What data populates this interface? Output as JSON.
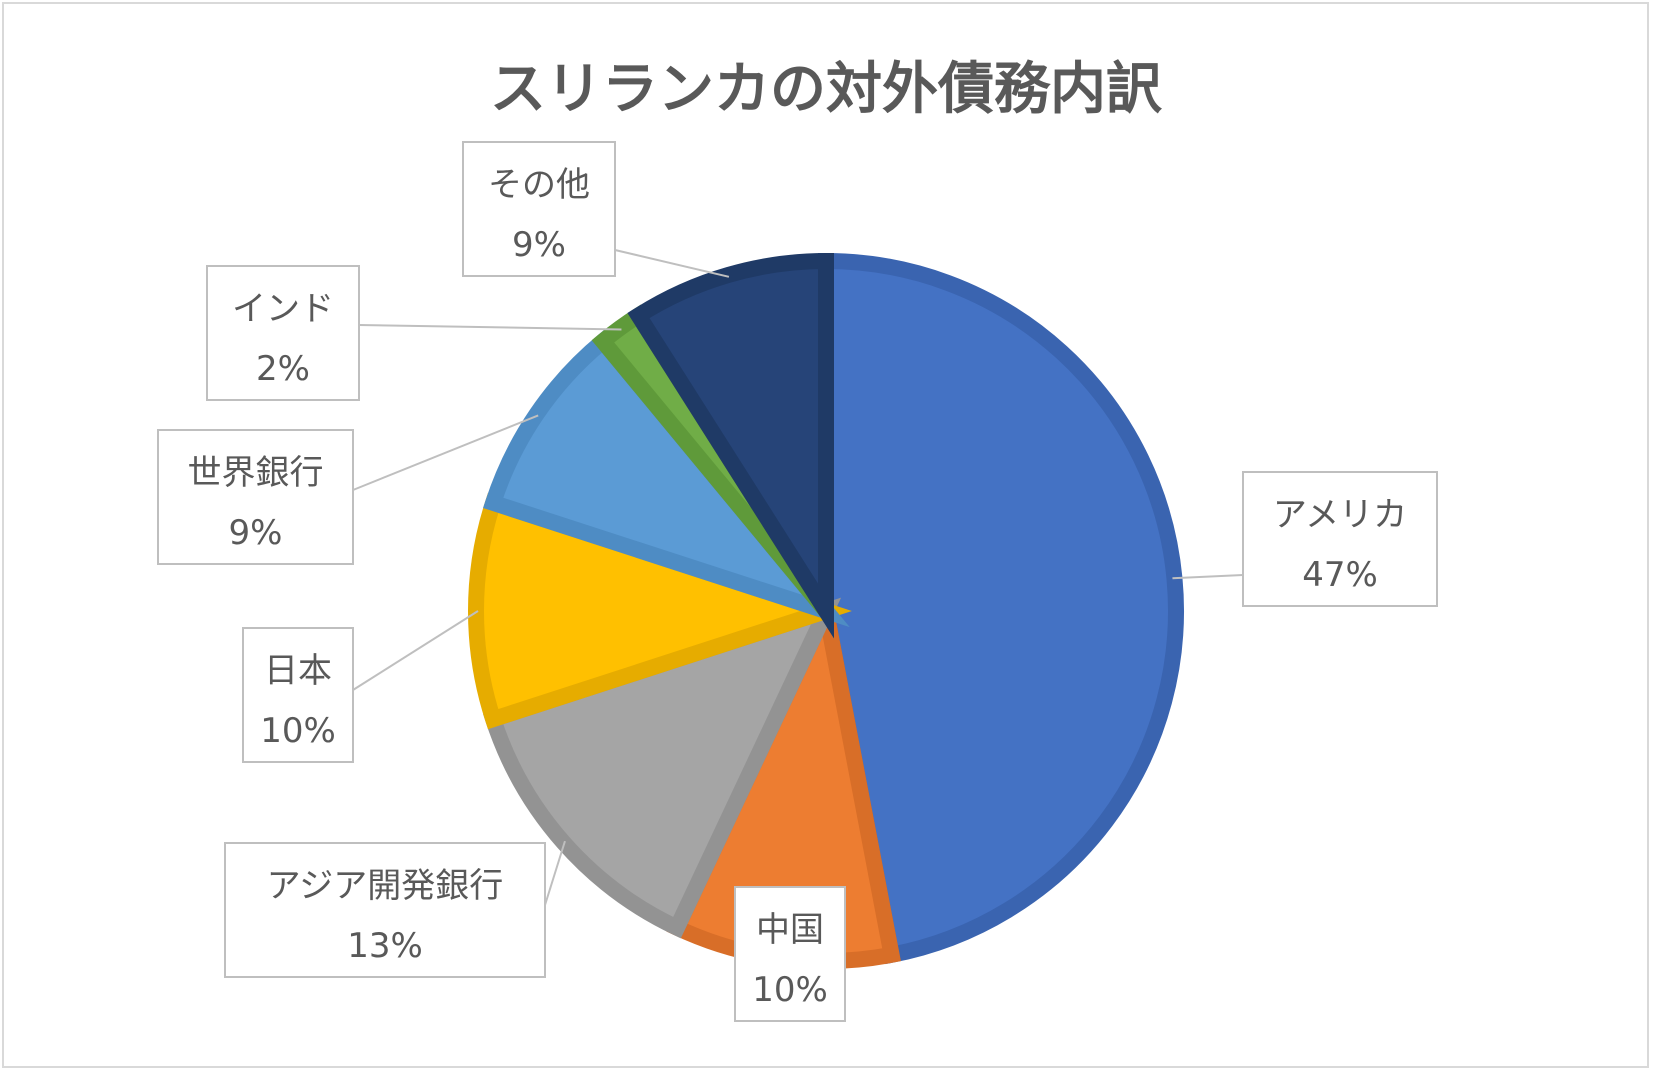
{
  "chart_data": {
    "type": "pie",
    "title": "スリランカの対外債務内訳",
    "slices": [
      {
        "name": "アメリカ",
        "value": 47,
        "label": "47%",
        "color": "#4472C4",
        "border": "#3A64B0"
      },
      {
        "name": "中国",
        "value": 10,
        "label": "10%",
        "color": "#ED7D31",
        "border": "#D86E28"
      },
      {
        "name": "アジア開発銀行",
        "value": 13,
        "label": "13%",
        "color": "#A5A5A5",
        "border": "#939393"
      },
      {
        "name": "日本",
        "value": 10,
        "label": "10%",
        "color": "#FFC000",
        "border": "#E6AC00"
      },
      {
        "name": "世界銀行",
        "value": 9,
        "label": "9%",
        "color": "#5B9BD5",
        "border": "#4E8CC4"
      },
      {
        "name": "インド",
        "value": 2,
        "label": "2%",
        "color": "#70AD47",
        "border": "#5F9A3A"
      },
      {
        "name": "その他",
        "value": 9,
        "label": "9%",
        "color": "#264478",
        "border": "#1F3A66"
      }
    ]
  }
}
